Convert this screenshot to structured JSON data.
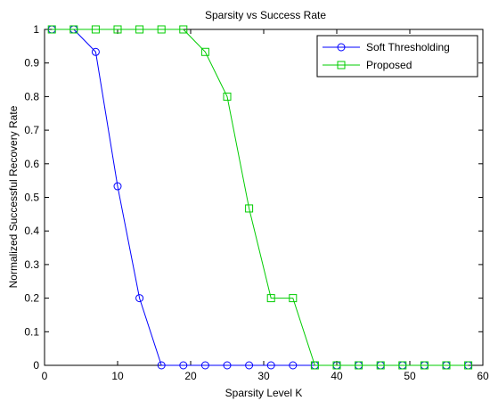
{
  "chart_data": {
    "type": "line",
    "title": "Sparsity vs Success Rate",
    "xlabel": "Sparsity Level K",
    "ylabel": "Normalized Successful Recovery Rate",
    "xlim": [
      0,
      60
    ],
    "ylim": [
      0,
      1
    ],
    "xticks": [
      0,
      10,
      20,
      30,
      40,
      50,
      60
    ],
    "yticks": [
      0,
      0.1,
      0.2,
      0.3,
      0.4,
      0.5,
      0.6,
      0.7,
      0.8,
      0.9,
      1
    ],
    "xtick_labels": [
      "0",
      "10",
      "20",
      "30",
      "40",
      "50",
      "60"
    ],
    "ytick_labels": [
      "0",
      "0.1",
      "0.2",
      "0.3",
      "0.4",
      "0.5",
      "0.6",
      "0.7",
      "0.8",
      "0.9",
      "1"
    ],
    "grid": false,
    "legend_position": "top-right",
    "x": [
      1,
      4,
      7,
      10,
      13,
      16,
      19,
      22,
      25,
      28,
      31,
      34,
      37,
      40,
      43,
      46,
      49,
      52,
      55,
      58
    ],
    "series": [
      {
        "name": "Soft Thresholding",
        "color": "#0000ff",
        "marker": "circle",
        "values": [
          1,
          1,
          0.933,
          0.533,
          0.2,
          0,
          0,
          0,
          0,
          0,
          0,
          0,
          0,
          0,
          0,
          0,
          0,
          0,
          0,
          0
        ]
      },
      {
        "name": "Proposed",
        "color": "#00cc00",
        "marker": "square",
        "values": [
          1,
          1,
          1,
          1,
          1,
          1,
          1,
          0.933,
          0.8,
          0.467,
          0.2,
          0.2,
          0,
          0,
          0,
          0,
          0,
          0,
          0,
          0
        ]
      }
    ]
  }
}
